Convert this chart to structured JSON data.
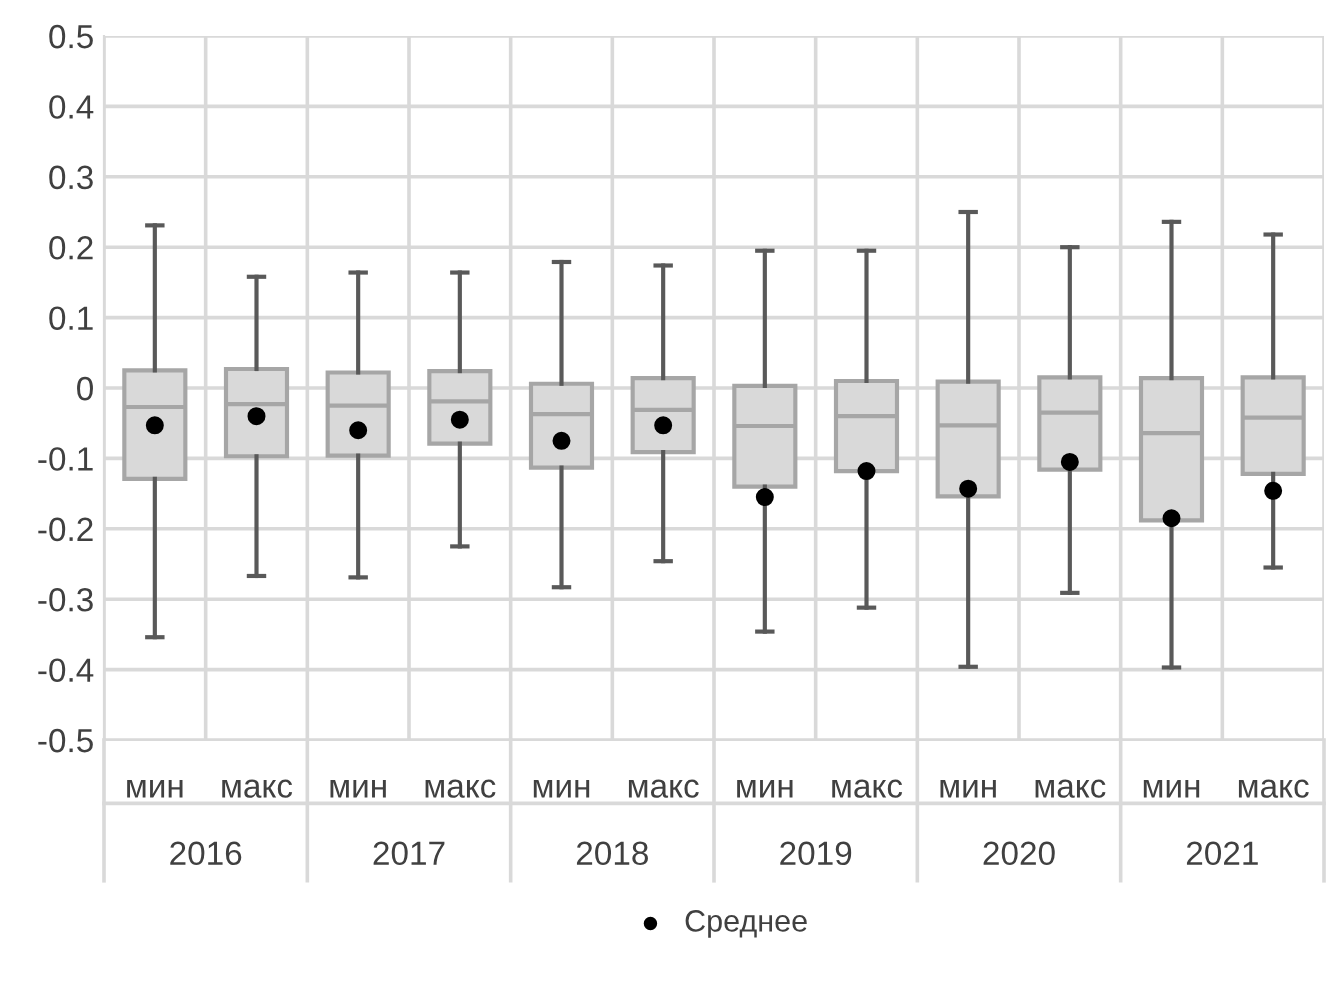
{
  "chart_data": {
    "type": "box",
    "categories": [
      "мин",
      "макс",
      "мин",
      "макс",
      "мин",
      "макс",
      "мин",
      "макс",
      "мин",
      "макс",
      "мин",
      "макс"
    ],
    "annotations": [
      "2016",
      "2017",
      "2018",
      "2019",
      "2020",
      "2021"
    ],
    "boxes": [
      {
        "low": -0.354,
        "q1": -0.129,
        "median": -0.027,
        "q3": 0.025,
        "high": 0.231
      },
      {
        "low": -0.267,
        "q1": -0.097,
        "median": -0.023,
        "q3": 0.027,
        "high": 0.158
      },
      {
        "low": -0.269,
        "q1": -0.096,
        "median": -0.025,
        "q3": 0.022,
        "high": 0.164
      },
      {
        "low": -0.225,
        "q1": -0.079,
        "median": -0.019,
        "q3": 0.024,
        "high": 0.164
      },
      {
        "low": -0.283,
        "q1": -0.113,
        "median": -0.037,
        "q3": 0.006,
        "high": 0.179
      },
      {
        "low": -0.246,
        "q1": -0.091,
        "median": -0.031,
        "q3": 0.014,
        "high": 0.174
      },
      {
        "low": -0.346,
        "q1": -0.14,
        "median": -0.054,
        "q3": 0.003,
        "high": 0.195
      },
      {
        "low": -0.312,
        "q1": -0.118,
        "median": -0.04,
        "q3": 0.01,
        "high": 0.195
      },
      {
        "low": -0.396,
        "q1": -0.154,
        "median": -0.053,
        "q3": 0.009,
        "high": 0.25
      },
      {
        "low": -0.291,
        "q1": -0.116,
        "median": -0.035,
        "q3": 0.015,
        "high": 0.2
      },
      {
        "low": -0.397,
        "q1": -0.188,
        "median": -0.064,
        "q3": 0.014,
        "high": 0.236
      },
      {
        "low": -0.255,
        "q1": -0.122,
        "median": -0.042,
        "q3": 0.015,
        "high": 0.218
      }
    ],
    "color": "#d9d9d9",
    "series": [
      {
        "name": "Среднее",
        "type": "scatter",
        "color": "#000000",
        "values": [
          -0.053,
          -0.04,
          -0.06,
          -0.045,
          -0.075,
          -0.053,
          -0.155,
          -0.118,
          -0.143,
          -0.105,
          -0.185,
          -0.146
        ]
      }
    ],
    "ylim": [
      -0.5,
      0.5
    ],
    "yticks": [
      -0.5,
      -0.4,
      -0.3,
      -0.2,
      -0.1,
      0,
      0.1,
      0.2,
      0.3,
      0.4,
      0.5
    ],
    "grid": true,
    "legend": "bottom",
    "marker": "circle"
  }
}
